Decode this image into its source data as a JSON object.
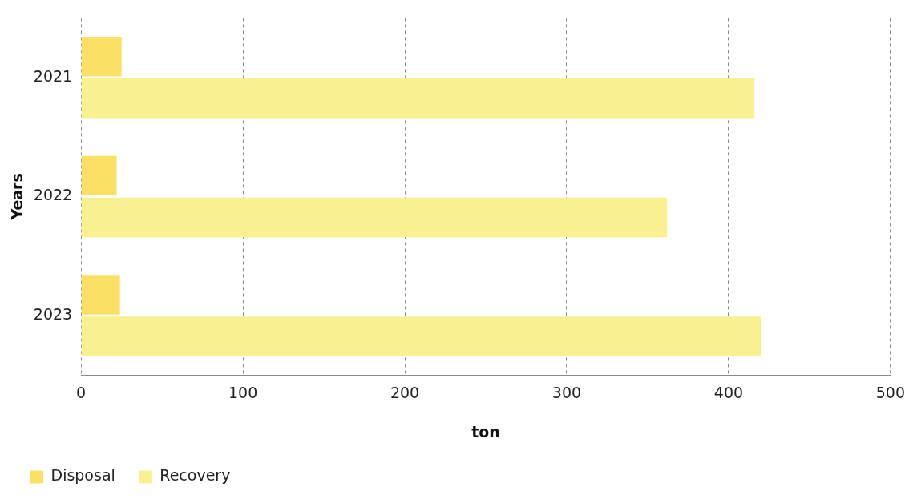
{
  "chart_data": {
    "type": "bar",
    "orientation": "horizontal",
    "xlabel": "ton",
    "ylabel": "Years",
    "categories": [
      "2021",
      "2022",
      "2023"
    ],
    "series": [
      {
        "name": "Disposal",
        "color": "#fce066",
        "values": [
          25,
          22,
          24
        ]
      },
      {
        "name": "Recovery",
        "color": "#fbf08f",
        "values": [
          416,
          362,
          420
        ]
      }
    ],
    "xlim": [
      0,
      500
    ],
    "xticks": [
      0,
      100,
      200,
      300,
      400,
      500
    ],
    "grid": "x",
    "legend": "bottom left"
  }
}
